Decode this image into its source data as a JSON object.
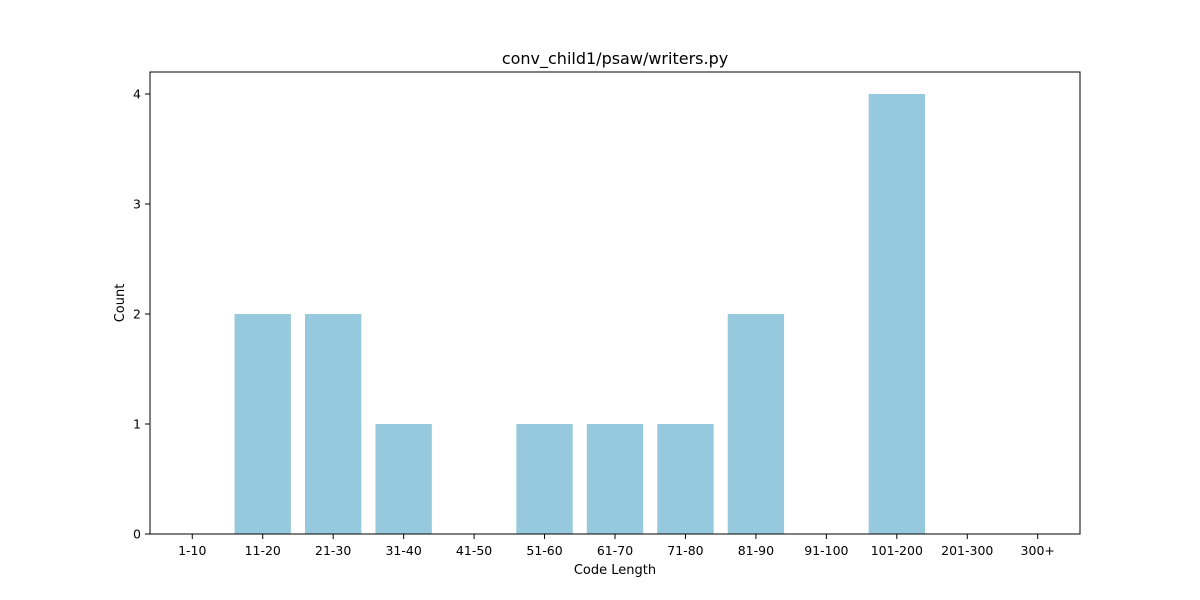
{
  "chart_data": {
    "type": "bar",
    "title": "conv_child1/psaw/writers.py",
    "xlabel": "Code Length",
    "ylabel": "Count",
    "categories": [
      "1-10",
      "11-20",
      "21-30",
      "31-40",
      "41-50",
      "51-60",
      "61-70",
      "71-80",
      "81-90",
      "91-100",
      "101-200",
      "201-300",
      "300+"
    ],
    "values": [
      0,
      2,
      2,
      1,
      0,
      1,
      1,
      1,
      2,
      0,
      4,
      0,
      0
    ],
    "ylim": [
      0,
      4.2
    ],
    "yticks": [
      "0",
      "1",
      "2",
      "3",
      "4"
    ],
    "grid": false,
    "bar_color": "#96c9dd"
  }
}
